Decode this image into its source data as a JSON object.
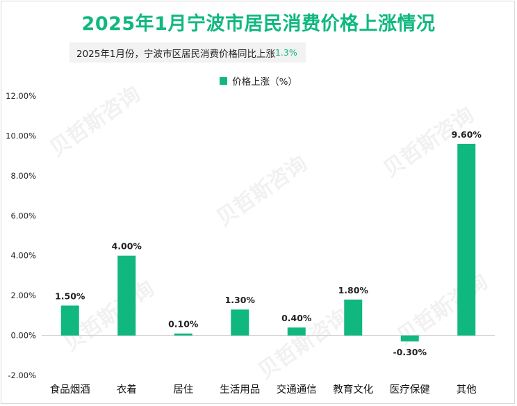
{
  "title": "2025年1月宁波市居民消费价格上涨情况",
  "subtitle": {
    "text": "2025年1月份，宁波市区居民消费价格同比上涨",
    "highlight": "1.3%"
  },
  "colors": {
    "accent": "#10b87f",
    "bar": "#10b87f"
  },
  "chart_data": {
    "type": "bar",
    "categories": [
      "食品烟酒",
      "衣着",
      "居住",
      "生活用品",
      "交通通信",
      "教育文化",
      "医疗保健",
      "其他"
    ],
    "series": [
      {
        "name": "价格上涨（%）",
        "values": [
          1.5,
          4.0,
          0.1,
          1.3,
          0.4,
          1.8,
          -0.3,
          9.6
        ]
      }
    ],
    "data_labels": [
      "1.50%",
      "4.00%",
      "0.10%",
      "1.30%",
      "0.40%",
      "1.80%",
      "-0.30%",
      "9.60%"
    ],
    "yticks": [
      "-2.00%",
      "0.00%",
      "2.00%",
      "4.00%",
      "6.00%",
      "8.00%",
      "10.00%",
      "12.00%"
    ],
    "ylim": [
      -2,
      12
    ],
    "legend": "top-center",
    "grid": false
  }
}
